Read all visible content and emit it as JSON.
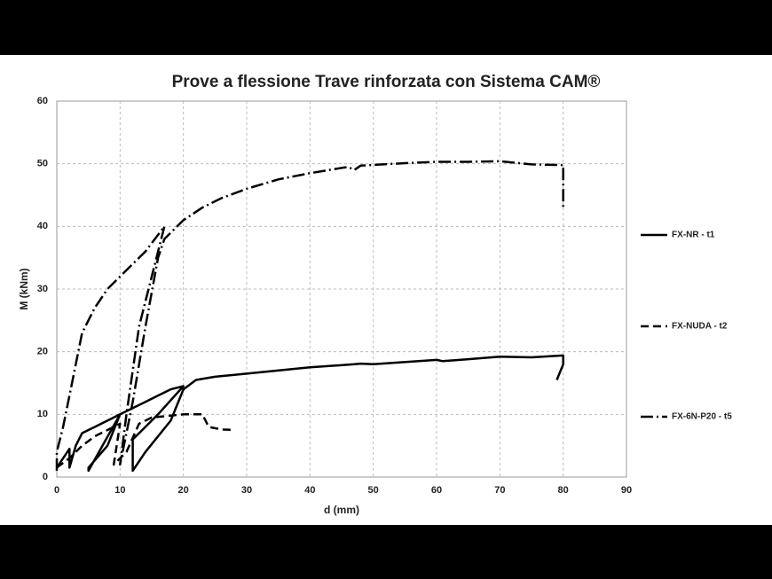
{
  "chart_data": {
    "type": "line",
    "title": "Prove a flessione Trave rinforzata con Sistema CAM®",
    "x_label": "d (mm)",
    "y_label": "M (kNm)",
    "xlim": [
      0,
      90
    ],
    "xticks": [
      0,
      10,
      20,
      30,
      40,
      50,
      60,
      70,
      80,
      90
    ],
    "ylim": [
      0,
      60
    ],
    "yticks": [
      0,
      10,
      20,
      30,
      40,
      50,
      60
    ],
    "grid": true,
    "legend": "right",
    "series": [
      {
        "name": "FX-NR - t1",
        "color": "#000000",
        "linestyle": "solid",
        "x": [
          0,
          1,
          2,
          2,
          3,
          4,
          6,
          8,
          10,
          5,
          5,
          8,
          10,
          12,
          14,
          16,
          18,
          20,
          16,
          12,
          12,
          14,
          18,
          20,
          22,
          25,
          30,
          40,
          47,
          48,
          50,
          60,
          61,
          65,
          70,
          75,
          80,
          80,
          79
        ],
        "values": [
          1.5,
          3,
          4.5,
          1.5,
          5,
          7,
          8,
          9,
          10,
          1,
          1.5,
          5,
          10,
          11,
          12,
          13,
          14,
          14.5,
          10,
          6,
          1,
          4,
          9,
          14,
          15.5,
          16,
          16.5,
          17.5,
          18,
          18.1,
          18,
          18.7,
          18.5,
          18.8,
          19.2,
          19.1,
          19.4,
          18,
          15.5
        ]
      },
      {
        "name": "FX-NUDA - t2",
        "color": "#000000",
        "linestyle": "dashed",
        "x": [
          0,
          2,
          4,
          6,
          8,
          10,
          9,
          11,
          13,
          15,
          18,
          20,
          23,
          24,
          26,
          28
        ],
        "values": [
          1.5,
          3,
          5,
          6.5,
          7.5,
          8.5,
          2,
          4,
          8.5,
          9.5,
          9.8,
          10,
          10,
          8,
          7.6,
          7.5
        ]
      },
      {
        "name": "FX-6N-P20 - t5",
        "color": "#000000",
        "linestyle": "dashdot",
        "x": [
          0,
          0,
          1,
          2,
          3,
          4,
          6,
          8,
          10,
          12,
          14,
          17,
          13,
          11,
          10,
          12,
          14,
          16,
          17,
          18,
          20,
          23,
          26,
          30,
          35,
          40,
          46,
          47,
          48,
          55,
          60,
          65,
          70,
          75,
          80,
          80,
          80
        ],
        "values": [
          1,
          4,
          8,
          13,
          18,
          23,
          27,
          30,
          32,
          34,
          36,
          40,
          24,
          10,
          2,
          12,
          24,
          35,
          38,
          39,
          41,
          43,
          44.5,
          46,
          47.5,
          48.5,
          49.5,
          49,
          49.7,
          50.1,
          50.3,
          50.3,
          50.4,
          49.9,
          49.8,
          47,
          43
        ]
      }
    ]
  }
}
